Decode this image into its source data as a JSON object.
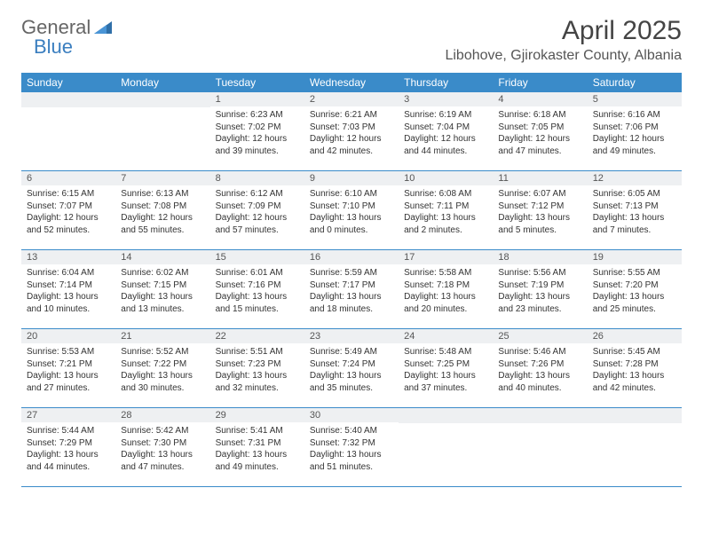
{
  "logo": {
    "text1": "General",
    "text2": "Blue"
  },
  "header": {
    "month_title": "April 2025",
    "location": "Libohove, Gjirokaster County, Albania"
  },
  "colors": {
    "header_bg": "#3a8bc9",
    "header_text": "#ffffff",
    "daynum_bg": "#eef0f2",
    "week_border": "#3a8bc9",
    "body_text": "#333333",
    "logo_blue": "#3a7ebf"
  },
  "days_of_week": [
    "Sunday",
    "Monday",
    "Tuesday",
    "Wednesday",
    "Thursday",
    "Friday",
    "Saturday"
  ],
  "weeks": [
    [
      {
        "num": "",
        "sunrise": "",
        "sunset": "",
        "daylight1": "",
        "daylight2": ""
      },
      {
        "num": "",
        "sunrise": "",
        "sunset": "",
        "daylight1": "",
        "daylight2": ""
      },
      {
        "num": "1",
        "sunrise": "Sunrise: 6:23 AM",
        "sunset": "Sunset: 7:02 PM",
        "daylight1": "Daylight: 12 hours",
        "daylight2": "and 39 minutes."
      },
      {
        "num": "2",
        "sunrise": "Sunrise: 6:21 AM",
        "sunset": "Sunset: 7:03 PM",
        "daylight1": "Daylight: 12 hours",
        "daylight2": "and 42 minutes."
      },
      {
        "num": "3",
        "sunrise": "Sunrise: 6:19 AM",
        "sunset": "Sunset: 7:04 PM",
        "daylight1": "Daylight: 12 hours",
        "daylight2": "and 44 minutes."
      },
      {
        "num": "4",
        "sunrise": "Sunrise: 6:18 AM",
        "sunset": "Sunset: 7:05 PM",
        "daylight1": "Daylight: 12 hours",
        "daylight2": "and 47 minutes."
      },
      {
        "num": "5",
        "sunrise": "Sunrise: 6:16 AM",
        "sunset": "Sunset: 7:06 PM",
        "daylight1": "Daylight: 12 hours",
        "daylight2": "and 49 minutes."
      }
    ],
    [
      {
        "num": "6",
        "sunrise": "Sunrise: 6:15 AM",
        "sunset": "Sunset: 7:07 PM",
        "daylight1": "Daylight: 12 hours",
        "daylight2": "and 52 minutes."
      },
      {
        "num": "7",
        "sunrise": "Sunrise: 6:13 AM",
        "sunset": "Sunset: 7:08 PM",
        "daylight1": "Daylight: 12 hours",
        "daylight2": "and 55 minutes."
      },
      {
        "num": "8",
        "sunrise": "Sunrise: 6:12 AM",
        "sunset": "Sunset: 7:09 PM",
        "daylight1": "Daylight: 12 hours",
        "daylight2": "and 57 minutes."
      },
      {
        "num": "9",
        "sunrise": "Sunrise: 6:10 AM",
        "sunset": "Sunset: 7:10 PM",
        "daylight1": "Daylight: 13 hours",
        "daylight2": "and 0 minutes."
      },
      {
        "num": "10",
        "sunrise": "Sunrise: 6:08 AM",
        "sunset": "Sunset: 7:11 PM",
        "daylight1": "Daylight: 13 hours",
        "daylight2": "and 2 minutes."
      },
      {
        "num": "11",
        "sunrise": "Sunrise: 6:07 AM",
        "sunset": "Sunset: 7:12 PM",
        "daylight1": "Daylight: 13 hours",
        "daylight2": "and 5 minutes."
      },
      {
        "num": "12",
        "sunrise": "Sunrise: 6:05 AM",
        "sunset": "Sunset: 7:13 PM",
        "daylight1": "Daylight: 13 hours",
        "daylight2": "and 7 minutes."
      }
    ],
    [
      {
        "num": "13",
        "sunrise": "Sunrise: 6:04 AM",
        "sunset": "Sunset: 7:14 PM",
        "daylight1": "Daylight: 13 hours",
        "daylight2": "and 10 minutes."
      },
      {
        "num": "14",
        "sunrise": "Sunrise: 6:02 AM",
        "sunset": "Sunset: 7:15 PM",
        "daylight1": "Daylight: 13 hours",
        "daylight2": "and 13 minutes."
      },
      {
        "num": "15",
        "sunrise": "Sunrise: 6:01 AM",
        "sunset": "Sunset: 7:16 PM",
        "daylight1": "Daylight: 13 hours",
        "daylight2": "and 15 minutes."
      },
      {
        "num": "16",
        "sunrise": "Sunrise: 5:59 AM",
        "sunset": "Sunset: 7:17 PM",
        "daylight1": "Daylight: 13 hours",
        "daylight2": "and 18 minutes."
      },
      {
        "num": "17",
        "sunrise": "Sunrise: 5:58 AM",
        "sunset": "Sunset: 7:18 PM",
        "daylight1": "Daylight: 13 hours",
        "daylight2": "and 20 minutes."
      },
      {
        "num": "18",
        "sunrise": "Sunrise: 5:56 AM",
        "sunset": "Sunset: 7:19 PM",
        "daylight1": "Daylight: 13 hours",
        "daylight2": "and 23 minutes."
      },
      {
        "num": "19",
        "sunrise": "Sunrise: 5:55 AM",
        "sunset": "Sunset: 7:20 PM",
        "daylight1": "Daylight: 13 hours",
        "daylight2": "and 25 minutes."
      }
    ],
    [
      {
        "num": "20",
        "sunrise": "Sunrise: 5:53 AM",
        "sunset": "Sunset: 7:21 PM",
        "daylight1": "Daylight: 13 hours",
        "daylight2": "and 27 minutes."
      },
      {
        "num": "21",
        "sunrise": "Sunrise: 5:52 AM",
        "sunset": "Sunset: 7:22 PM",
        "daylight1": "Daylight: 13 hours",
        "daylight2": "and 30 minutes."
      },
      {
        "num": "22",
        "sunrise": "Sunrise: 5:51 AM",
        "sunset": "Sunset: 7:23 PM",
        "daylight1": "Daylight: 13 hours",
        "daylight2": "and 32 minutes."
      },
      {
        "num": "23",
        "sunrise": "Sunrise: 5:49 AM",
        "sunset": "Sunset: 7:24 PM",
        "daylight1": "Daylight: 13 hours",
        "daylight2": "and 35 minutes."
      },
      {
        "num": "24",
        "sunrise": "Sunrise: 5:48 AM",
        "sunset": "Sunset: 7:25 PM",
        "daylight1": "Daylight: 13 hours",
        "daylight2": "and 37 minutes."
      },
      {
        "num": "25",
        "sunrise": "Sunrise: 5:46 AM",
        "sunset": "Sunset: 7:26 PM",
        "daylight1": "Daylight: 13 hours",
        "daylight2": "and 40 minutes."
      },
      {
        "num": "26",
        "sunrise": "Sunrise: 5:45 AM",
        "sunset": "Sunset: 7:28 PM",
        "daylight1": "Daylight: 13 hours",
        "daylight2": "and 42 minutes."
      }
    ],
    [
      {
        "num": "27",
        "sunrise": "Sunrise: 5:44 AM",
        "sunset": "Sunset: 7:29 PM",
        "daylight1": "Daylight: 13 hours",
        "daylight2": "and 44 minutes."
      },
      {
        "num": "28",
        "sunrise": "Sunrise: 5:42 AM",
        "sunset": "Sunset: 7:30 PM",
        "daylight1": "Daylight: 13 hours",
        "daylight2": "and 47 minutes."
      },
      {
        "num": "29",
        "sunrise": "Sunrise: 5:41 AM",
        "sunset": "Sunset: 7:31 PM",
        "daylight1": "Daylight: 13 hours",
        "daylight2": "and 49 minutes."
      },
      {
        "num": "30",
        "sunrise": "Sunrise: 5:40 AM",
        "sunset": "Sunset: 7:32 PM",
        "daylight1": "Daylight: 13 hours",
        "daylight2": "and 51 minutes."
      },
      {
        "num": "",
        "sunrise": "",
        "sunset": "",
        "daylight1": "",
        "daylight2": ""
      },
      {
        "num": "",
        "sunrise": "",
        "sunset": "",
        "daylight1": "",
        "daylight2": ""
      },
      {
        "num": "",
        "sunrise": "",
        "sunset": "",
        "daylight1": "",
        "daylight2": ""
      }
    ]
  ]
}
